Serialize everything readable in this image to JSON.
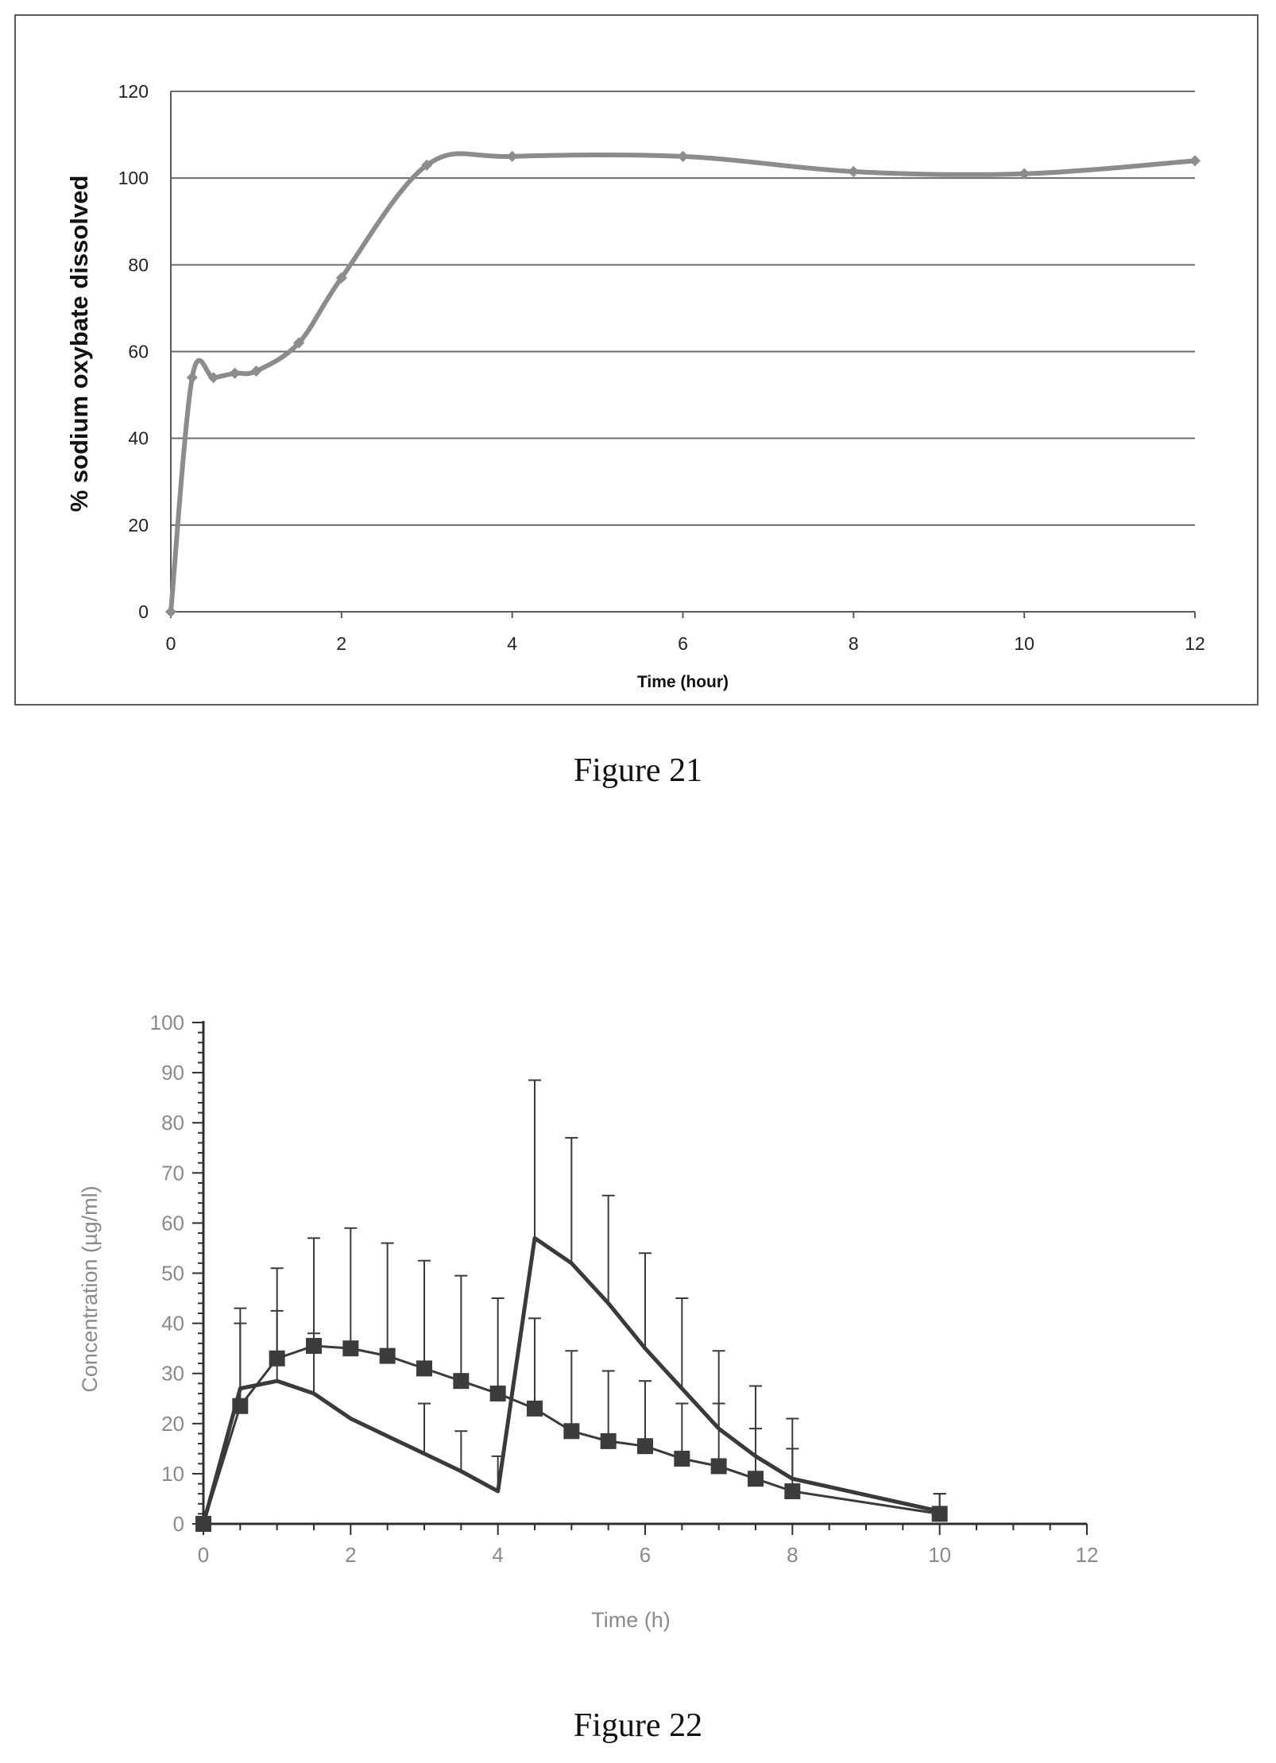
{
  "colors": {
    "fig21_line": "#8c8c8c",
    "fig21_grid": "#6a6a6a",
    "fig22_line": "#3a3a3a",
    "fig22_marker": "#3c3c3c",
    "fig22_text": "#8a8a8a"
  },
  "figures": {
    "fig21": {
      "caption": "Figure 21"
    },
    "fig22": {
      "caption": "Figure 22"
    }
  },
  "chart_data": [
    {
      "type": "line",
      "xlabel": "Time (hour)",
      "ylabel": "% sodium oxybate dissolved",
      "xlim": [
        0,
        12
      ],
      "ylim": [
        0,
        120
      ],
      "xticks": [
        0,
        2,
        4,
        6,
        8,
        10,
        12
      ],
      "yticks": [
        0,
        20,
        40,
        60,
        80,
        100,
        120
      ],
      "grid": "horizontal",
      "series": [
        {
          "x": [
            0,
            0.25,
            0.5,
            0.75,
            1,
            1.5,
            2,
            3,
            4,
            6,
            8,
            10,
            12
          ],
          "y": [
            0,
            54,
            54,
            55,
            55.5,
            62,
            77,
            103,
            105,
            105,
            101.5,
            101,
            104
          ]
        }
      ]
    },
    {
      "type": "line",
      "xlabel": "Time (h)",
      "ylabel": "Concentration (µg/ml)",
      "xlim": [
        0,
        12
      ],
      "ylim": [
        0,
        100
      ],
      "xticks": [
        0,
        2,
        4,
        6,
        8,
        10,
        12
      ],
      "yticks": [
        0,
        10,
        20,
        30,
        40,
        50,
        60,
        70,
        80,
        90,
        100
      ],
      "grid": "none",
      "series": [
        {
          "marker": "square",
          "x": [
            0,
            0.5,
            1,
            1.5,
            2,
            2.5,
            3,
            3.5,
            4,
            4.5,
            5,
            5.5,
            6,
            6.5,
            7,
            7.5,
            8,
            10
          ],
          "y": [
            0,
            23.5,
            33,
            35.5,
            35,
            33.5,
            31,
            28.5,
            26,
            23,
            18.5,
            16.5,
            15.5,
            13,
            11.5,
            9,
            6.5,
            2
          ],
          "err_upper": [
            0,
            43,
            51,
            57,
            59,
            56,
            52.5,
            49.5,
            45,
            41,
            34.5,
            30.5,
            28.5,
            24,
            24,
            19,
            15,
            6
          ]
        },
        {
          "marker": "none",
          "x": [
            0,
            0.5,
            1,
            1.5,
            2,
            2.5,
            3,
            3.5,
            4,
            4.5,
            5,
            5.5,
            6,
            6.5,
            7,
            7.5,
            8,
            10
          ],
          "y": [
            0,
            27,
            28.5,
            26,
            21,
            17.5,
            14,
            10.5,
            6.5,
            57,
            52,
            44,
            35,
            27,
            19,
            13.5,
            9,
            2.5
          ],
          "err_upper": [
            0,
            40,
            42.5,
            38,
            null,
            null,
            24,
            18.5,
            13.5,
            88.5,
            77,
            65.5,
            54,
            45,
            34.5,
            27.5,
            21,
            6
          ]
        }
      ]
    }
  ]
}
